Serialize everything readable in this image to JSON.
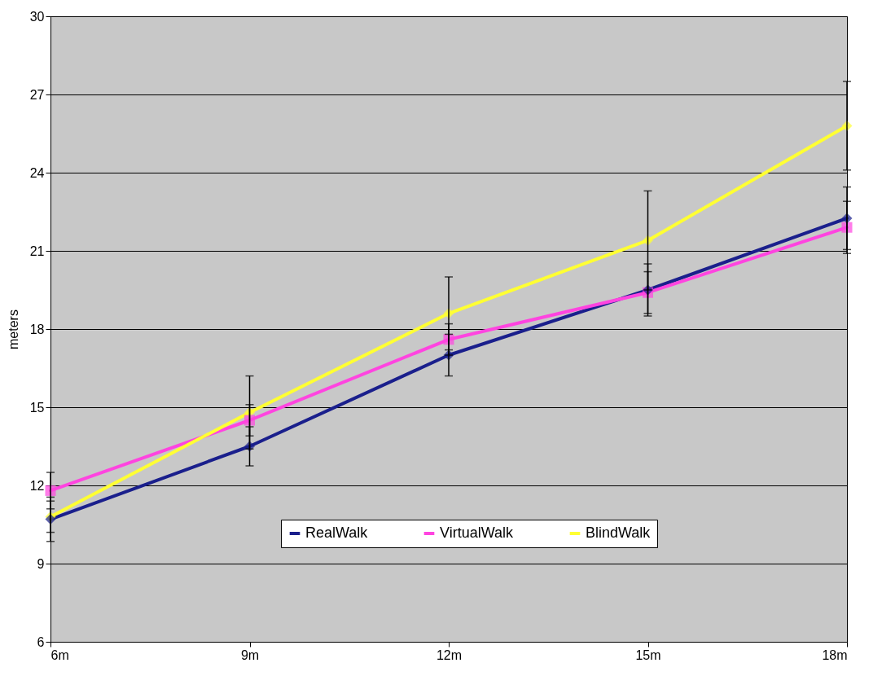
{
  "chart_data": {
    "type": "line",
    "ylabel": "meters",
    "categories": [
      "6m",
      "9m",
      "12m",
      "15m",
      "18m"
    ],
    "ylim": [
      6,
      30
    ],
    "yticks": [
      6,
      9,
      12,
      15,
      18,
      21,
      24,
      27,
      30
    ],
    "grid": "y",
    "legend": "bottom right",
    "line_style": "solid",
    "series": [
      {
        "name": "RealWalk",
        "color": "#1a1f8c",
        "marker": "diamond",
        "values": [
          10.7,
          13.5,
          17.0,
          19.5,
          22.25
        ],
        "errors": [
          0.85,
          0.75,
          0.8,
          1.0,
          1.2
        ]
      },
      {
        "name": "VirtualWalk",
        "color": "#ff44e0",
        "marker": "square",
        "values": [
          11.8,
          14.5,
          17.6,
          19.4,
          21.9
        ],
        "errors": [
          0.7,
          0.6,
          0.6,
          0.8,
          1.0
        ]
      },
      {
        "name": "BlindWalk",
        "color": "#ffff33",
        "marker": "diamond",
        "values": [
          10.8,
          14.8,
          18.6,
          21.4,
          25.8
        ],
        "errors": [
          0.6,
          1.4,
          1.4,
          1.9,
          1.7
        ]
      }
    ]
  }
}
